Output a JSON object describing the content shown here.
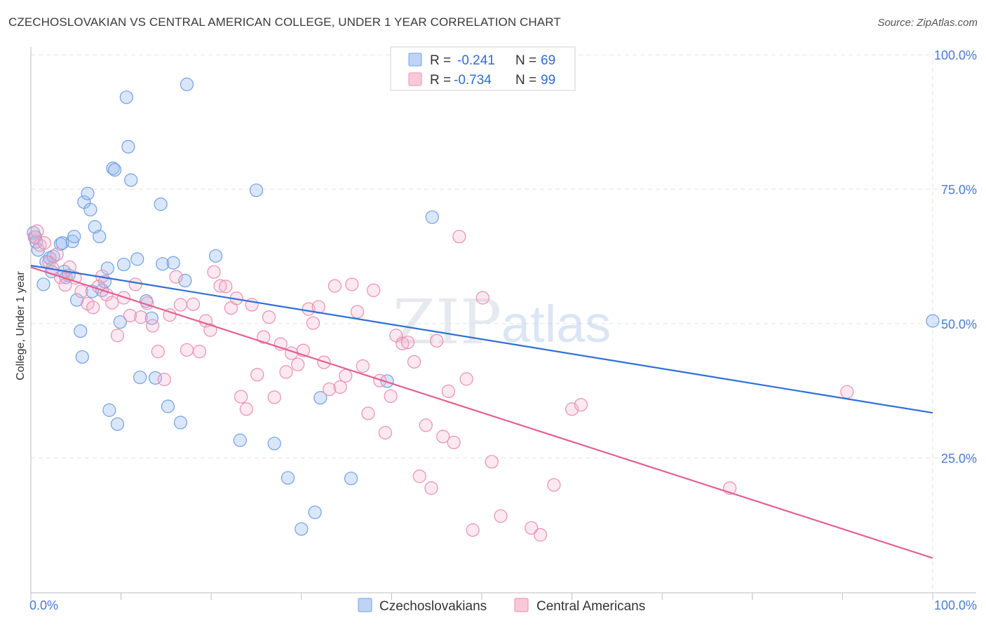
{
  "header": {
    "title": "CZECHOSLOVAKIAN VS CENTRAL AMERICAN COLLEGE, UNDER 1 YEAR CORRELATION CHART",
    "source": "Source: ZipAtlas.com"
  },
  "watermark": {
    "left": "ZIP",
    "right": "atlas"
  },
  "legend_box": {
    "rows": [
      {
        "r_label": "R =",
        "r_value": "-0.241",
        "n_label": "N =",
        "n_value": "69",
        "color": "#a9c6f0"
      },
      {
        "r_label": "R =",
        "r_value": "-0.734",
        "n_label": "N =",
        "n_value": "99",
        "color": "#f5b8cc"
      }
    ]
  },
  "bottom_legend": [
    {
      "label": "Czechoslovakians",
      "color": "#a9c6f0"
    },
    {
      "label": "Central Americans",
      "color": "#f5b8cc"
    }
  ],
  "chart_data": {
    "type": "scatter",
    "title": "CZECHOSLOVAKIAN VS CENTRAL AMERICAN COLLEGE, UNDER 1 YEAR CORRELATION CHART",
    "xlabel": "",
    "ylabel": "College, Under 1 year",
    "xlim": [
      0,
      100
    ],
    "ylim": [
      0,
      100
    ],
    "x_tick_labels": [
      "0.0%",
      "100.0%"
    ],
    "y_tick_labels": [
      "25.0%",
      "50.0%",
      "75.0%",
      "100.0%"
    ],
    "y_ticks": [
      25,
      50,
      75,
      100
    ],
    "grid": true,
    "legend_position": "top-center",
    "series": [
      {
        "name": "Czechoslovakians",
        "color": "#6fa0e6",
        "fill": "rgba(150,185,240,0.35)",
        "trend": {
          "x": [
            0,
            100
          ],
          "y": [
            60.8,
            33.4
          ],
          "color": "#2f6fd6"
        },
        "points": [
          [
            0.3,
            66.9
          ],
          [
            0.5,
            66.1
          ],
          [
            0.6,
            65.2
          ],
          [
            0.8,
            63.7
          ],
          [
            1.4,
            57.3
          ],
          [
            1.7,
            61.5
          ],
          [
            2.1,
            62.2
          ],
          [
            2.3,
            59.7
          ],
          [
            2.5,
            62.5
          ],
          [
            3.3,
            64.8
          ],
          [
            3.5,
            65.0
          ],
          [
            3.7,
            59.7
          ],
          [
            3.9,
            58.6
          ],
          [
            4.2,
            59.0
          ],
          [
            4.6,
            65.3
          ],
          [
            4.8,
            66.2
          ],
          [
            5.1,
            54.4
          ],
          [
            5.5,
            48.6
          ],
          [
            5.7,
            43.8
          ],
          [
            5.9,
            72.6
          ],
          [
            6.3,
            74.2
          ],
          [
            6.6,
            71.2
          ],
          [
            6.8,
            56.0
          ],
          [
            7.1,
            68.0
          ],
          [
            7.6,
            66.2
          ],
          [
            7.9,
            56.2
          ],
          [
            8.2,
            57.8
          ],
          [
            8.5,
            60.3
          ],
          [
            8.7,
            33.9
          ],
          [
            9.1,
            78.9
          ],
          [
            9.3,
            78.6
          ],
          [
            9.6,
            31.3
          ],
          [
            9.9,
            50.3
          ],
          [
            10.3,
            61.0
          ],
          [
            10.6,
            92.1
          ],
          [
            10.8,
            82.9
          ],
          [
            11.1,
            76.7
          ],
          [
            11.8,
            62.0
          ],
          [
            12.1,
            40.0
          ],
          [
            12.8,
            54.2
          ],
          [
            13.4,
            51.0
          ],
          [
            13.8,
            39.9
          ],
          [
            14.4,
            72.2
          ],
          [
            14.6,
            61.1
          ],
          [
            15.2,
            34.6
          ],
          [
            15.8,
            61.3
          ],
          [
            16.6,
            31.6
          ],
          [
            17.1,
            58.0
          ],
          [
            17.3,
            94.5
          ],
          [
            20.5,
            62.6
          ],
          [
            23.2,
            28.3
          ],
          [
            25.0,
            74.8
          ],
          [
            27.0,
            27.7
          ],
          [
            28.5,
            21.3
          ],
          [
            30.0,
            11.8
          ],
          [
            31.5,
            14.9
          ],
          [
            32.1,
            36.2
          ],
          [
            35.5,
            21.2
          ],
          [
            39.5,
            39.3
          ],
          [
            44.5,
            69.8
          ],
          [
            100.0,
            50.5
          ]
        ]
      },
      {
        "name": "Central Americans",
        "color": "#ea8fae",
        "fill": "rgba(245,180,205,0.30)",
        "trend": {
          "x": [
            0,
            100
          ],
          "y": [
            60.5,
            6.4
          ],
          "color": "#e2608f"
        },
        "points": [
          [
            0.4,
            66.1
          ],
          [
            0.7,
            67.2
          ],
          [
            1.0,
            64.6
          ],
          [
            1.5,
            65.0
          ],
          [
            2.0,
            61.4
          ],
          [
            2.4,
            60.3
          ],
          [
            2.9,
            62.9
          ],
          [
            3.3,
            58.6
          ],
          [
            3.8,
            57.2
          ],
          [
            4.3,
            60.5
          ],
          [
            4.9,
            58.5
          ],
          [
            5.6,
            56.0
          ],
          [
            6.3,
            53.7
          ],
          [
            6.9,
            53.0
          ],
          [
            7.5,
            56.9
          ],
          [
            7.9,
            58.8
          ],
          [
            8.4,
            55.4
          ],
          [
            9.0,
            53.9
          ],
          [
            9.6,
            47.8
          ],
          [
            10.3,
            54.8
          ],
          [
            11.0,
            51.5
          ],
          [
            11.6,
            57.3
          ],
          [
            12.2,
            51.2
          ],
          [
            12.9,
            53.8
          ],
          [
            13.5,
            49.6
          ],
          [
            14.1,
            44.8
          ],
          [
            14.8,
            39.6
          ],
          [
            15.4,
            51.6
          ],
          [
            16.1,
            58.7
          ],
          [
            16.6,
            53.5
          ],
          [
            17.3,
            45.1
          ],
          [
            18.0,
            53.6
          ],
          [
            18.7,
            44.8
          ],
          [
            19.4,
            50.5
          ],
          [
            19.9,
            48.8
          ],
          [
            20.3,
            59.6
          ],
          [
            21.0,
            57.0
          ],
          [
            21.6,
            56.9
          ],
          [
            22.2,
            52.9
          ],
          [
            22.8,
            54.7
          ],
          [
            23.3,
            36.4
          ],
          [
            23.9,
            34.1
          ],
          [
            24.5,
            53.5
          ],
          [
            25.1,
            40.5
          ],
          [
            25.8,
            47.5
          ],
          [
            26.4,
            51.2
          ],
          [
            27.0,
            36.3
          ],
          [
            27.7,
            46.2
          ],
          [
            28.3,
            41.0
          ],
          [
            28.9,
            44.5
          ],
          [
            29.6,
            42.4
          ],
          [
            30.2,
            45.0
          ],
          [
            30.8,
            52.7
          ],
          [
            31.3,
            50.1
          ],
          [
            31.9,
            53.1
          ],
          [
            32.5,
            42.8
          ],
          [
            33.1,
            37.8
          ],
          [
            33.7,
            57.0
          ],
          [
            34.3,
            38.2
          ],
          [
            34.9,
            40.3
          ],
          [
            35.6,
            57.3
          ],
          [
            36.2,
            52.2
          ],
          [
            36.8,
            42.1
          ],
          [
            37.4,
            33.3
          ],
          [
            38.0,
            56.2
          ],
          [
            38.7,
            39.4
          ],
          [
            39.3,
            29.7
          ],
          [
            39.9,
            36.5
          ],
          [
            40.5,
            47.8
          ],
          [
            41.2,
            46.3
          ],
          [
            41.8,
            46.5
          ],
          [
            42.5,
            42.9
          ],
          [
            43.1,
            21.6
          ],
          [
            43.8,
            31.1
          ],
          [
            44.4,
            19.4
          ],
          [
            45.0,
            46.8
          ],
          [
            45.7,
            29.0
          ],
          [
            46.3,
            37.4
          ],
          [
            46.9,
            27.9
          ],
          [
            47.5,
            66.2
          ],
          [
            48.3,
            39.7
          ],
          [
            49.0,
            11.6
          ],
          [
            50.1,
            54.8
          ],
          [
            51.1,
            24.3
          ],
          [
            52.1,
            14.2
          ],
          [
            55.5,
            12.0
          ],
          [
            56.5,
            10.7
          ],
          [
            58.0,
            20.0
          ],
          [
            60.0,
            34.1
          ],
          [
            61.0,
            34.9
          ],
          [
            77.5,
            19.4
          ],
          [
            90.5,
            37.3
          ]
        ]
      }
    ]
  }
}
